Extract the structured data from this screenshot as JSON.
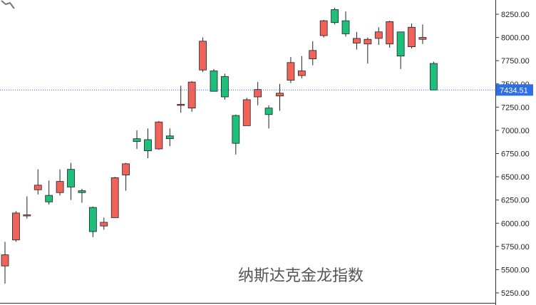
{
  "chart_data": {
    "type": "candlestick",
    "title": "纳斯达克金龙指数",
    "ylim": [
      5200,
      8350
    ],
    "y_ticks": [
      "8250.00",
      "8000.00",
      "7750.00",
      "7500.00",
      "7250.00",
      "7000.00",
      "6750.00",
      "6500.00",
      "6250.00",
      "6000.00",
      "5750.00",
      "5500.00",
      "5250.00"
    ],
    "y_tick_values": [
      8250,
      8000,
      7750,
      7500,
      7250,
      7000,
      6750,
      6500,
      6250,
      6000,
      5750,
      5500,
      5250
    ],
    "last_price": 7434.51,
    "last_price_label": "7434.51",
    "colors": {
      "up": "#f0635a",
      "down": "#1dbf7a",
      "price_tag": "#2f6fe4",
      "price_line": "#2f6fe4"
    },
    "candles": [
      {
        "o": 5540,
        "h": 5800,
        "l": 5350,
        "c": 5660
      },
      {
        "o": 5820,
        "h": 6130,
        "l": 5800,
        "c": 6110
      },
      {
        "o": 6090,
        "h": 6290,
        "l": 6050,
        "c": 6090
      },
      {
        "o": 6360,
        "h": 6580,
        "l": 6310,
        "c": 6410
      },
      {
        "o": 6300,
        "h": 6460,
        "l": 6200,
        "c": 6230
      },
      {
        "o": 6330,
        "h": 6580,
        "l": 6300,
        "c": 6450
      },
      {
        "o": 6580,
        "h": 6650,
        "l": 6250,
        "c": 6390
      },
      {
        "o": 6350,
        "h": 6370,
        "l": 6220,
        "c": 6330
      },
      {
        "o": 6170,
        "h": 6180,
        "l": 5850,
        "c": 5910
      },
      {
        "o": 5970,
        "h": 6060,
        "l": 5930,
        "c": 6010
      },
      {
        "o": 6060,
        "h": 6500,
        "l": 6060,
        "c": 6490
      },
      {
        "o": 6520,
        "h": 6650,
        "l": 6350,
        "c": 6640
      },
      {
        "o": 6910,
        "h": 7000,
        "l": 6800,
        "c": 6880
      },
      {
        "o": 6900,
        "h": 7020,
        "l": 6700,
        "c": 6780
      },
      {
        "o": 6800,
        "h": 7100,
        "l": 6790,
        "c": 7090
      },
      {
        "o": 6940,
        "h": 7020,
        "l": 6830,
        "c": 6910
      },
      {
        "o": 7270,
        "h": 7480,
        "l": 7190,
        "c": 7280
      },
      {
        "o": 7240,
        "h": 7530,
        "l": 7200,
        "c": 7520
      },
      {
        "o": 7650,
        "h": 8000,
        "l": 7630,
        "c": 7960
      },
      {
        "o": 7640,
        "h": 7660,
        "l": 7420,
        "c": 7420
      },
      {
        "o": 7580,
        "h": 7610,
        "l": 7330,
        "c": 7360
      },
      {
        "o": 7160,
        "h": 7170,
        "l": 6740,
        "c": 6860
      },
      {
        "o": 7050,
        "h": 7350,
        "l": 7050,
        "c": 7330
      },
      {
        "o": 7360,
        "h": 7520,
        "l": 7270,
        "c": 7440
      },
      {
        "o": 7240,
        "h": 7270,
        "l": 7020,
        "c": 7170
      },
      {
        "o": 7370,
        "h": 7500,
        "l": 7210,
        "c": 7400
      },
      {
        "o": 7540,
        "h": 7790,
        "l": 7510,
        "c": 7730
      },
      {
        "o": 7590,
        "h": 7800,
        "l": 7560,
        "c": 7640
      },
      {
        "o": 7770,
        "h": 7960,
        "l": 7700,
        "c": 7860
      },
      {
        "o": 8020,
        "h": 8190,
        "l": 8000,
        "c": 8180
      },
      {
        "o": 8300,
        "h": 8320,
        "l": 8140,
        "c": 8160
      },
      {
        "o": 8180,
        "h": 8280,
        "l": 8010,
        "c": 8040
      },
      {
        "o": 7940,
        "h": 8060,
        "l": 7870,
        "c": 7990
      },
      {
        "o": 7930,
        "h": 8000,
        "l": 7720,
        "c": 7980
      },
      {
        "o": 7990,
        "h": 8110,
        "l": 7920,
        "c": 8060
      },
      {
        "o": 7930,
        "h": 8180,
        "l": 7890,
        "c": 8170
      },
      {
        "o": 8060,
        "h": 8060,
        "l": 7660,
        "c": 7800
      },
      {
        "o": 7900,
        "h": 8150,
        "l": 7880,
        "c": 8110
      },
      {
        "o": 7980,
        "h": 8140,
        "l": 7930,
        "c": 8000
      },
      {
        "o": 7720,
        "h": 7740,
        "l": 7434.51,
        "c": 7434.51
      }
    ]
  }
}
